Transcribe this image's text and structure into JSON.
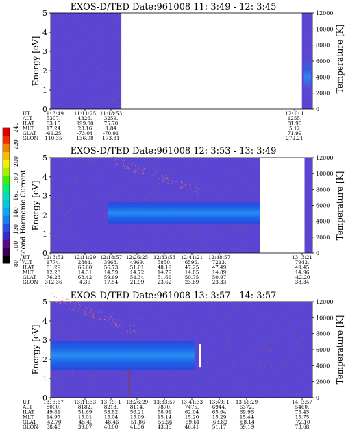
{
  "colorbar": {
    "label": "Second Harmonic Current",
    "ticks": [
      "80",
      "100",
      "120",
      "140",
      "160",
      "180",
      "200",
      "220",
      "240"
    ],
    "colors": [
      "#000000",
      "#3c0050",
      "#5a0a8c",
      "#3a28c8",
      "#2a4ee8",
      "#1a7cf0",
      "#0aa8f0",
      "#00c8e0",
      "#00e0b0",
      "#00f070",
      "#40f000",
      "#a0f000",
      "#f0f000",
      "#f0c000",
      "#f08000",
      "#f03000",
      "#e00000"
    ]
  },
  "colors": {
    "background": "#5a46d2",
    "band_core": "#2a8cf0",
    "band_mid": "#1c64ea",
    "band_edge": "#2a48dc",
    "speckle": "#c8502a",
    "gap": "#ffffff"
  },
  "chart_data": [
    {
      "type": "heatmap",
      "title": "EXOS-D/TED   Date:961008  11: 3:49 - 12: 3:45",
      "ylabel": "Energy [eV]",
      "y2label": "Temperature [K]",
      "ylim": [
        0,
        5
      ],
      "y_ticks": [
        "0",
        "1",
        "2",
        "3",
        "4",
        "5"
      ],
      "y2lim": [
        0,
        12000
      ],
      "y2_ticks": [
        "0",
        "2000",
        "4000",
        "6000",
        "8000",
        "10000",
        "12000"
      ],
      "x_ticks": [
        "11: 3:49",
        "11:11:25",
        "11:18:53",
        "12: 0: 1"
      ],
      "data_segments": [
        [
          0,
          0.27
        ],
        [
          0.96,
          1.0
        ]
      ],
      "band": null,
      "temperature_note": "blue spike near 3000-6000 K at end of interval",
      "orbit_rows": [
        {
          "label": "UT",
          "values": [
            "11: 3:49",
            "11:11:25",
            "11:18:53",
            "",
            "",
            "",
            "",
            "12: 0: 1"
          ]
        },
        {
          "label": "ALT",
          "values": [
            "5307.",
            "4326.",
            "3259.",
            "",
            "",
            "",
            "",
            "1255."
          ]
        },
        {
          "label": "ILAT",
          "values": [
            "83.15",
            "999.00",
            "75.70",
            "",
            "",
            "",
            "",
            "81.90"
          ]
        },
        {
          "label": "MLT",
          "values": [
            "17.24",
            "23.16",
            "1.84",
            "",
            "",
            "",
            "",
            "5.12"
          ]
        },
        {
          "label": "GLAT",
          "values": [
            "-69.25",
            "-73.04",
            "-70.91",
            "",
            "",
            "",
            "",
            "71.99"
          ]
        },
        {
          "label": "GLON",
          "values": [
            "110.35",
            "136.08",
            "173.81",
            "",
            "",
            "",
            "",
            "272.21"
          ]
        }
      ]
    },
    {
      "type": "heatmap",
      "title": "EXOS-D/TED   Date:961008  12: 3:53 - 13: 3:49",
      "ylabel": "Energy [eV]",
      "y2label": "Temperature [K]",
      "ylim": [
        0,
        5
      ],
      "y_ticks": [
        "0",
        "1",
        "2",
        "3",
        "4",
        "5"
      ],
      "y2lim": [
        0,
        12000
      ],
      "y2_ticks": [
        "0",
        "2000",
        "4000",
        "6000",
        "8000",
        "10000",
        "12000"
      ],
      "x_ticks": [
        "12: 3:53",
        "12:11:29",
        "12:18:57",
        "12:26:25",
        "12:33:53",
        "12:41:21",
        "12:48:57",
        "13: 3:21"
      ],
      "data_segments": [
        [
          0,
          0.8
        ],
        [
          0.97,
          1.0
        ]
      ],
      "band": {
        "start": 0.22,
        "end": 0.8,
        "center_ev": 2.1,
        "half_width_ev": 0.55
      },
      "orbit_rows": [
        {
          "label": "UT",
          "values": [
            "12: 3:53",
            "12:11:29",
            "12:18:57",
            "12:26:25",
            "12:33:53",
            "12:41:21",
            "12:48:57",
            "13: 3:21"
          ]
        },
        {
          "label": "ALT",
          "values": [
            "1774.",
            "2884.",
            "3968.",
            "4969.",
            "5850.",
            "6596.",
            "7213.",
            "7943."
          ]
        },
        {
          "label": "ILAT",
          "values": [
            "81.29",
            "66.60",
            "56.73",
            "51.01",
            "48.19",
            "47.25",
            "47.49",
            "49.45"
          ]
        },
        {
          "label": "MLT",
          "values": [
            "12.23",
            "14.31",
            "14.59",
            "14.72",
            "14.79",
            "14.85",
            "14.89",
            "14.96"
          ]
        },
        {
          "label": "GLAT",
          "values": [
            "76.23",
            "68.42",
            "59.69",
            "54.34",
            "51.66",
            "50.75",
            "50.97",
            "-42.20"
          ]
        },
        {
          "label": "GLON",
          "values": [
            "312.36",
            "4.36",
            "17.54",
            "21.99",
            "23.62",
            "23.89",
            "23.33",
            "38.34"
          ]
        }
      ]
    },
    {
      "type": "heatmap",
      "title": "EXOS-D/TED   Date:961008  13: 3:57 - 14: 3:57",
      "ylabel": "Energy [eV]",
      "y2label": "Temperature [K]",
      "ylim": [
        0,
        5
      ],
      "y_ticks": [
        "0",
        "1",
        "2",
        "3",
        "4",
        "5"
      ],
      "y2lim": [
        0,
        12000
      ],
      "y2_ticks": [
        "0",
        "2000",
        "4000",
        "6000",
        "8000",
        "10000",
        "12000"
      ],
      "x_ticks": [
        "13: 3:57",
        "13:11:33",
        "13:19: 1",
        "13:26:29",
        "13:33:57",
        "13:41:33",
        "13:49: 1",
        "13:56:29",
        "14: 3:57"
      ],
      "data_segments": [
        [
          0,
          1.0
        ]
      ],
      "band": {
        "start": 0.0,
        "end": 0.55,
        "center_ev": 2.2,
        "half_width_ev": 0.75
      },
      "orbit_rows": [
        {
          "label": "UT",
          "values": [
            "13: 3:57",
            "13:11:33",
            "13:19: 1",
            "13:26:29",
            "13:33:57",
            "13:41:33",
            "13:49: 1",
            "13:56:29",
            "14: 3:57"
          ]
        },
        {
          "label": "ALT",
          "values": [
            "8000.",
            "8182.",
            "8218.",
            "8114.",
            "7870.",
            "7475.",
            "6944.",
            "6372.",
            "5460."
          ]
        },
        {
          "label": "ILAT",
          "values": [
            "49.81",
            "51.69",
            "53.82",
            "56.21",
            "58.91",
            "62.04",
            "65.64",
            "69.98",
            "75.45"
          ]
        },
        {
          "label": "MLT",
          "values": [
            "14.97",
            "15.01",
            "15.04",
            "15.09",
            "15.14",
            "15.20",
            "15.29",
            "15.44",
            "15.75"
          ]
        },
        {
          "label": "GLAT",
          "values": [
            "-42.70",
            "-45.40",
            "-48.46",
            "-51.86",
            "-55.56",
            "-59.61",
            "-63.82",
            "-68.14",
            "-72.10"
          ]
        },
        {
          "label": "GLON",
          "values": [
            "38.43",
            "39.07",
            "40.00",
            "41.36",
            "43.35",
            "46.41",
            "51.17",
            "59.19",
            "73.68"
          ]
        }
      ]
    }
  ]
}
